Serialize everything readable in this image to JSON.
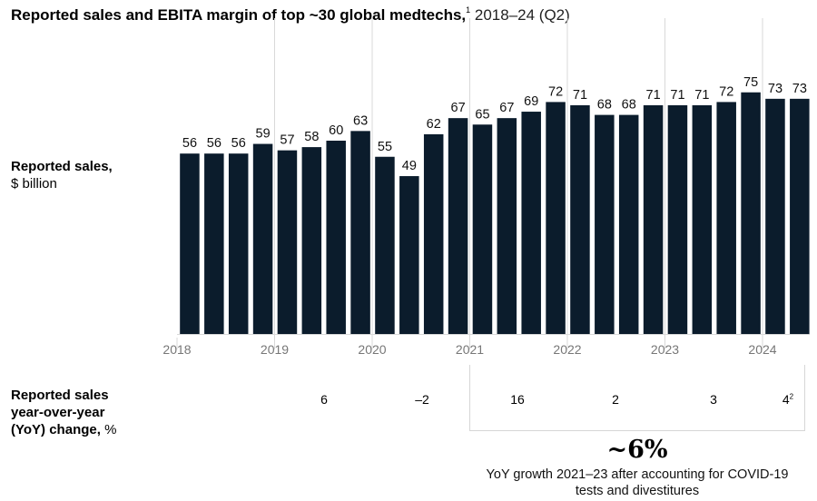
{
  "title": {
    "bold": "Reported sales and EBITA margin of top ~30 global medtechs,",
    "footnote": "1",
    "subtitle": "2018–24 (Q2)"
  },
  "labels": {
    "sales_bold": "Reported sales,",
    "sales_unit": "$ billion",
    "yoy_line1": "Reported sales",
    "yoy_line2": "year-over-year",
    "yoy_line3_bold": "(YoY) change,",
    "yoy_unit": "%"
  },
  "yoy": [
    {
      "year": "2019",
      "value": "6",
      "sup": ""
    },
    {
      "year": "2020",
      "value": "–2",
      "sup": ""
    },
    {
      "year": "2021",
      "value": "16",
      "sup": ""
    },
    {
      "year": "2022",
      "value": "2",
      "sup": ""
    },
    {
      "year": "2023",
      "value": "3",
      "sup": ""
    },
    {
      "year": "2024",
      "value": "4",
      "sup": "2"
    }
  ],
  "callout": {
    "value": "~6%",
    "text": "YoY growth 2021–23 after accounting for COVID-19 tests and divestitures"
  },
  "colors": {
    "bar": "#0b1c2c",
    "grid": "#d9d9d9",
    "axis_text": "#777777"
  },
  "chart_data": {
    "type": "bar",
    "title": "Reported sales and EBITA margin of top ~30 global medtechs, 2018–24 (Q2)",
    "xlabel": "",
    "ylabel": "Reported sales, $ billion",
    "categories": [
      "2018 Q1",
      "2018 Q2",
      "2018 Q3",
      "2018 Q4",
      "2019 Q1",
      "2019 Q2",
      "2019 Q3",
      "2019 Q4",
      "2020 Q1",
      "2020 Q2",
      "2020 Q3",
      "2020 Q4",
      "2021 Q1",
      "2021 Q2",
      "2021 Q3",
      "2021 Q4",
      "2022 Q1",
      "2022 Q2",
      "2022 Q3",
      "2022 Q4",
      "2023 Q1",
      "2023 Q2",
      "2023 Q3",
      "2023 Q4",
      "2024 Q1",
      "2024 Q2"
    ],
    "values": [
      56,
      56,
      56,
      59,
      57,
      58,
      60,
      63,
      55,
      49,
      62,
      67,
      65,
      67,
      69,
      72,
      71,
      68,
      68,
      71,
      71,
      71,
      72,
      75,
      73,
      73
    ],
    "x_tick_labels": [
      "2018",
      "2019",
      "2020",
      "2021",
      "2022",
      "2023",
      "2024"
    ],
    "ylim": [
      0,
      80
    ],
    "grid": "vertical year separators",
    "legend": "none"
  }
}
